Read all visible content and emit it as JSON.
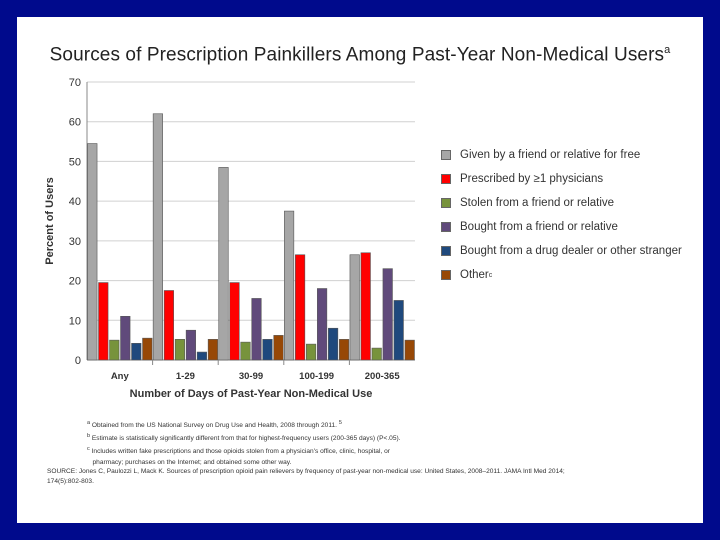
{
  "title": "Sources of Prescription Painkillers Among Past-Year Non-Medical Users",
  "title_sup": "a",
  "chart_data": {
    "type": "bar",
    "xlabel": "Number of Days of Past-Year Non-Medical Use",
    "ylabel": "Percent of Users",
    "ylim": [
      0,
      70
    ],
    "yticks": [
      0,
      10,
      20,
      30,
      40,
      50,
      60,
      70
    ],
    "grid": true,
    "categories": [
      "Any",
      "1-29",
      "30-99",
      "100-199",
      "200-365"
    ],
    "series": [
      {
        "name": "Given by a friend or relative for free",
        "color": "#a6a6a6",
        "values": [
          54.5,
          62,
          48.5,
          37.5,
          26.5
        ]
      },
      {
        "name": "Prescribed by ≥1 physicians",
        "color": "#ff0000",
        "values": [
          19.5,
          17.5,
          19.5,
          26.5,
          27
        ]
      },
      {
        "name": "Stolen from a friend or relative",
        "color": "#77933c",
        "values": [
          5,
          5.2,
          4.5,
          4,
          3
        ]
      },
      {
        "name": "Bought from a friend or relative",
        "color": "#604a7b",
        "values": [
          11,
          7.5,
          15.5,
          18,
          23
        ]
      },
      {
        "name": "Bought from a drug dealer or other stranger",
        "color": "#1f497d",
        "values": [
          4.2,
          2,
          5.2,
          8,
          15
        ]
      },
      {
        "name": "Other",
        "name_sup": "c",
        "color": "#974806",
        "values": [
          5.5,
          5.2,
          6.2,
          5.2,
          5
        ]
      }
    ]
  },
  "footnotes": {
    "a": "Obtained from the US National Survey on Drug Use and Health, 2008 through 2011.",
    "a_ref": "5",
    "b": "Estimate is statistically significantly different from that for highest-frequency users (200-365 days) (P<.05).",
    "c": "Includes written fake prescriptions and those opioids stolen from a physician's office, clinic, hospital, or",
    "c2": "pharmacy; purchases on the Internet; and obtained some other way."
  },
  "source": {
    "line1": "SOURCE: Jones C, Paulozzi L, Mack K. Sources of prescription opioid pain relievers by frequency of past-year non-medical use: United States, 2008–2011. JAMA Intl Med 2014;",
    "line2": "174(5):802-803."
  }
}
